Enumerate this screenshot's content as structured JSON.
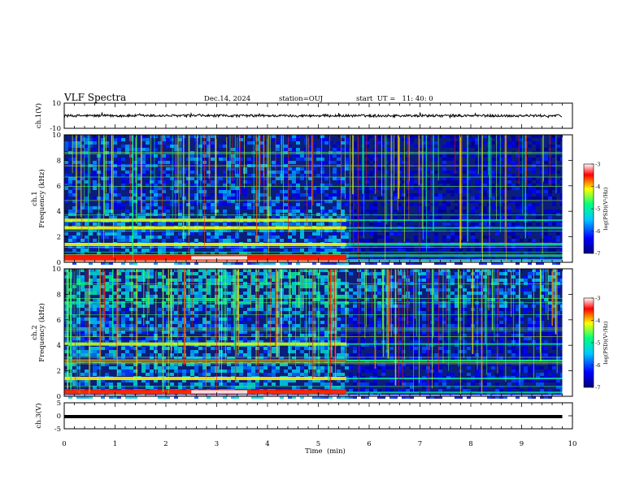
{
  "header": {
    "title": "VLF Spectra",
    "date": "Dec.14, 2024",
    "station": "station=OUJ",
    "start": "start  UT =   11: 40: 0"
  },
  "colors": {
    "spectrogram_background": "#0b1e7a",
    "waveform": "#000000",
    "colormap": [
      "#000080",
      "#0000ff",
      "#00c8ff",
      "#00ff80",
      "#ffff00",
      "#ff0000",
      "#ffffff"
    ]
  },
  "chart_data": [
    {
      "type": "line",
      "name": "ch1-waveform",
      "ylabel": "ch.1(V)",
      "ylim": [
        -10,
        10
      ],
      "y_ticks": [
        "10",
        "-10"
      ],
      "description_values": {
        "approx_level": 0,
        "approx_amplitude": 1
      },
      "xlim": [
        0,
        10
      ]
    },
    {
      "type": "heatmap",
      "name": "ch1-spectrogram",
      "ylabel": "ch.1\nFrequency  (kHz)",
      "ylabel_lines": [
        "ch.1",
        "Frequency  (kHz)"
      ],
      "ylim": [
        0,
        10
      ],
      "y_ticks": [
        "0",
        "2",
        "4",
        "6",
        "8",
        "10"
      ],
      "xlim": [
        0,
        9.8
      ],
      "colorbar": {
        "label": "log(PSD)(V²/Hz)",
        "range": [
          -7,
          -3
        ],
        "ticks": [
          "-3",
          "-4",
          "-5",
          "-6",
          "-7"
        ]
      },
      "regime_change_min": 5.55,
      "bright_bands_khz": [
        0.2,
        0.5,
        1.4,
        2.7,
        3.3
      ]
    },
    {
      "type": "heatmap",
      "name": "ch2-spectrogram",
      "ylabel": "ch.2\nFrequency  (kHz)",
      "ylabel_lines": [
        "ch.2",
        "Frequency  (kHz)"
      ],
      "ylim": [
        0,
        10
      ],
      "y_ticks": [
        "0",
        "2",
        "4",
        "6",
        "8",
        "10"
      ],
      "xlim": [
        0,
        9.8
      ],
      "colorbar": {
        "label": "log(PSD)(V²/Hz)",
        "range": [
          -7,
          -3
        ],
        "ticks": [
          "-3",
          "-4",
          "-5",
          "-6",
          "-7"
        ]
      },
      "regime_change_min": 5.55,
      "bright_bands_khz": [
        0.3,
        1.4,
        2.8,
        4.1
      ]
    },
    {
      "type": "line",
      "name": "ch3-waveform",
      "ylabel": "ch.3(V)",
      "ylim": [
        -5,
        5
      ],
      "y_ticks": [
        "5",
        "0",
        "-5"
      ],
      "description_values": {
        "approx_level": -0.3
      },
      "xlim": [
        0,
        10
      ]
    }
  ],
  "x_axis": {
    "label": "Time  (min)",
    "ticks": [
      "0",
      "1",
      "2",
      "3",
      "4",
      "5",
      "6",
      "7",
      "8",
      "9",
      "10"
    ],
    "range": [
      0,
      10
    ]
  }
}
